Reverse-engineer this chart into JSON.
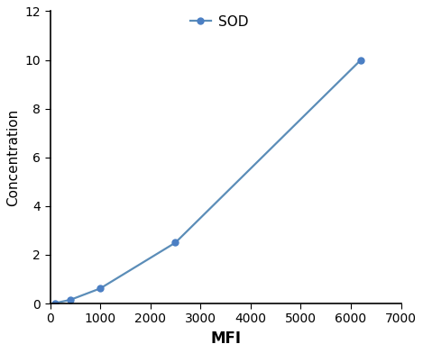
{
  "x": [
    100,
    400,
    1000,
    2500,
    6200
  ],
  "y": [
    0.02,
    0.15,
    0.62,
    2.5,
    10.0
  ],
  "line_color": "#5B8DB8",
  "marker_color": "#4B7FC4",
  "xlabel": "MFI",
  "ylabel": "Concentration",
  "xlim": [
    0,
    7000
  ],
  "ylim": [
    0,
    12
  ],
  "xticks": [
    0,
    1000,
    2000,
    3000,
    4000,
    5000,
    6000,
    7000
  ],
  "yticks": [
    0,
    2,
    4,
    6,
    8,
    10,
    12
  ],
  "legend_label": "SOD",
  "xlabel_fontsize": 12,
  "ylabel_fontsize": 11,
  "tick_fontsize": 10,
  "legend_fontsize": 11,
  "line_width": 1.6,
  "marker_size": 5
}
